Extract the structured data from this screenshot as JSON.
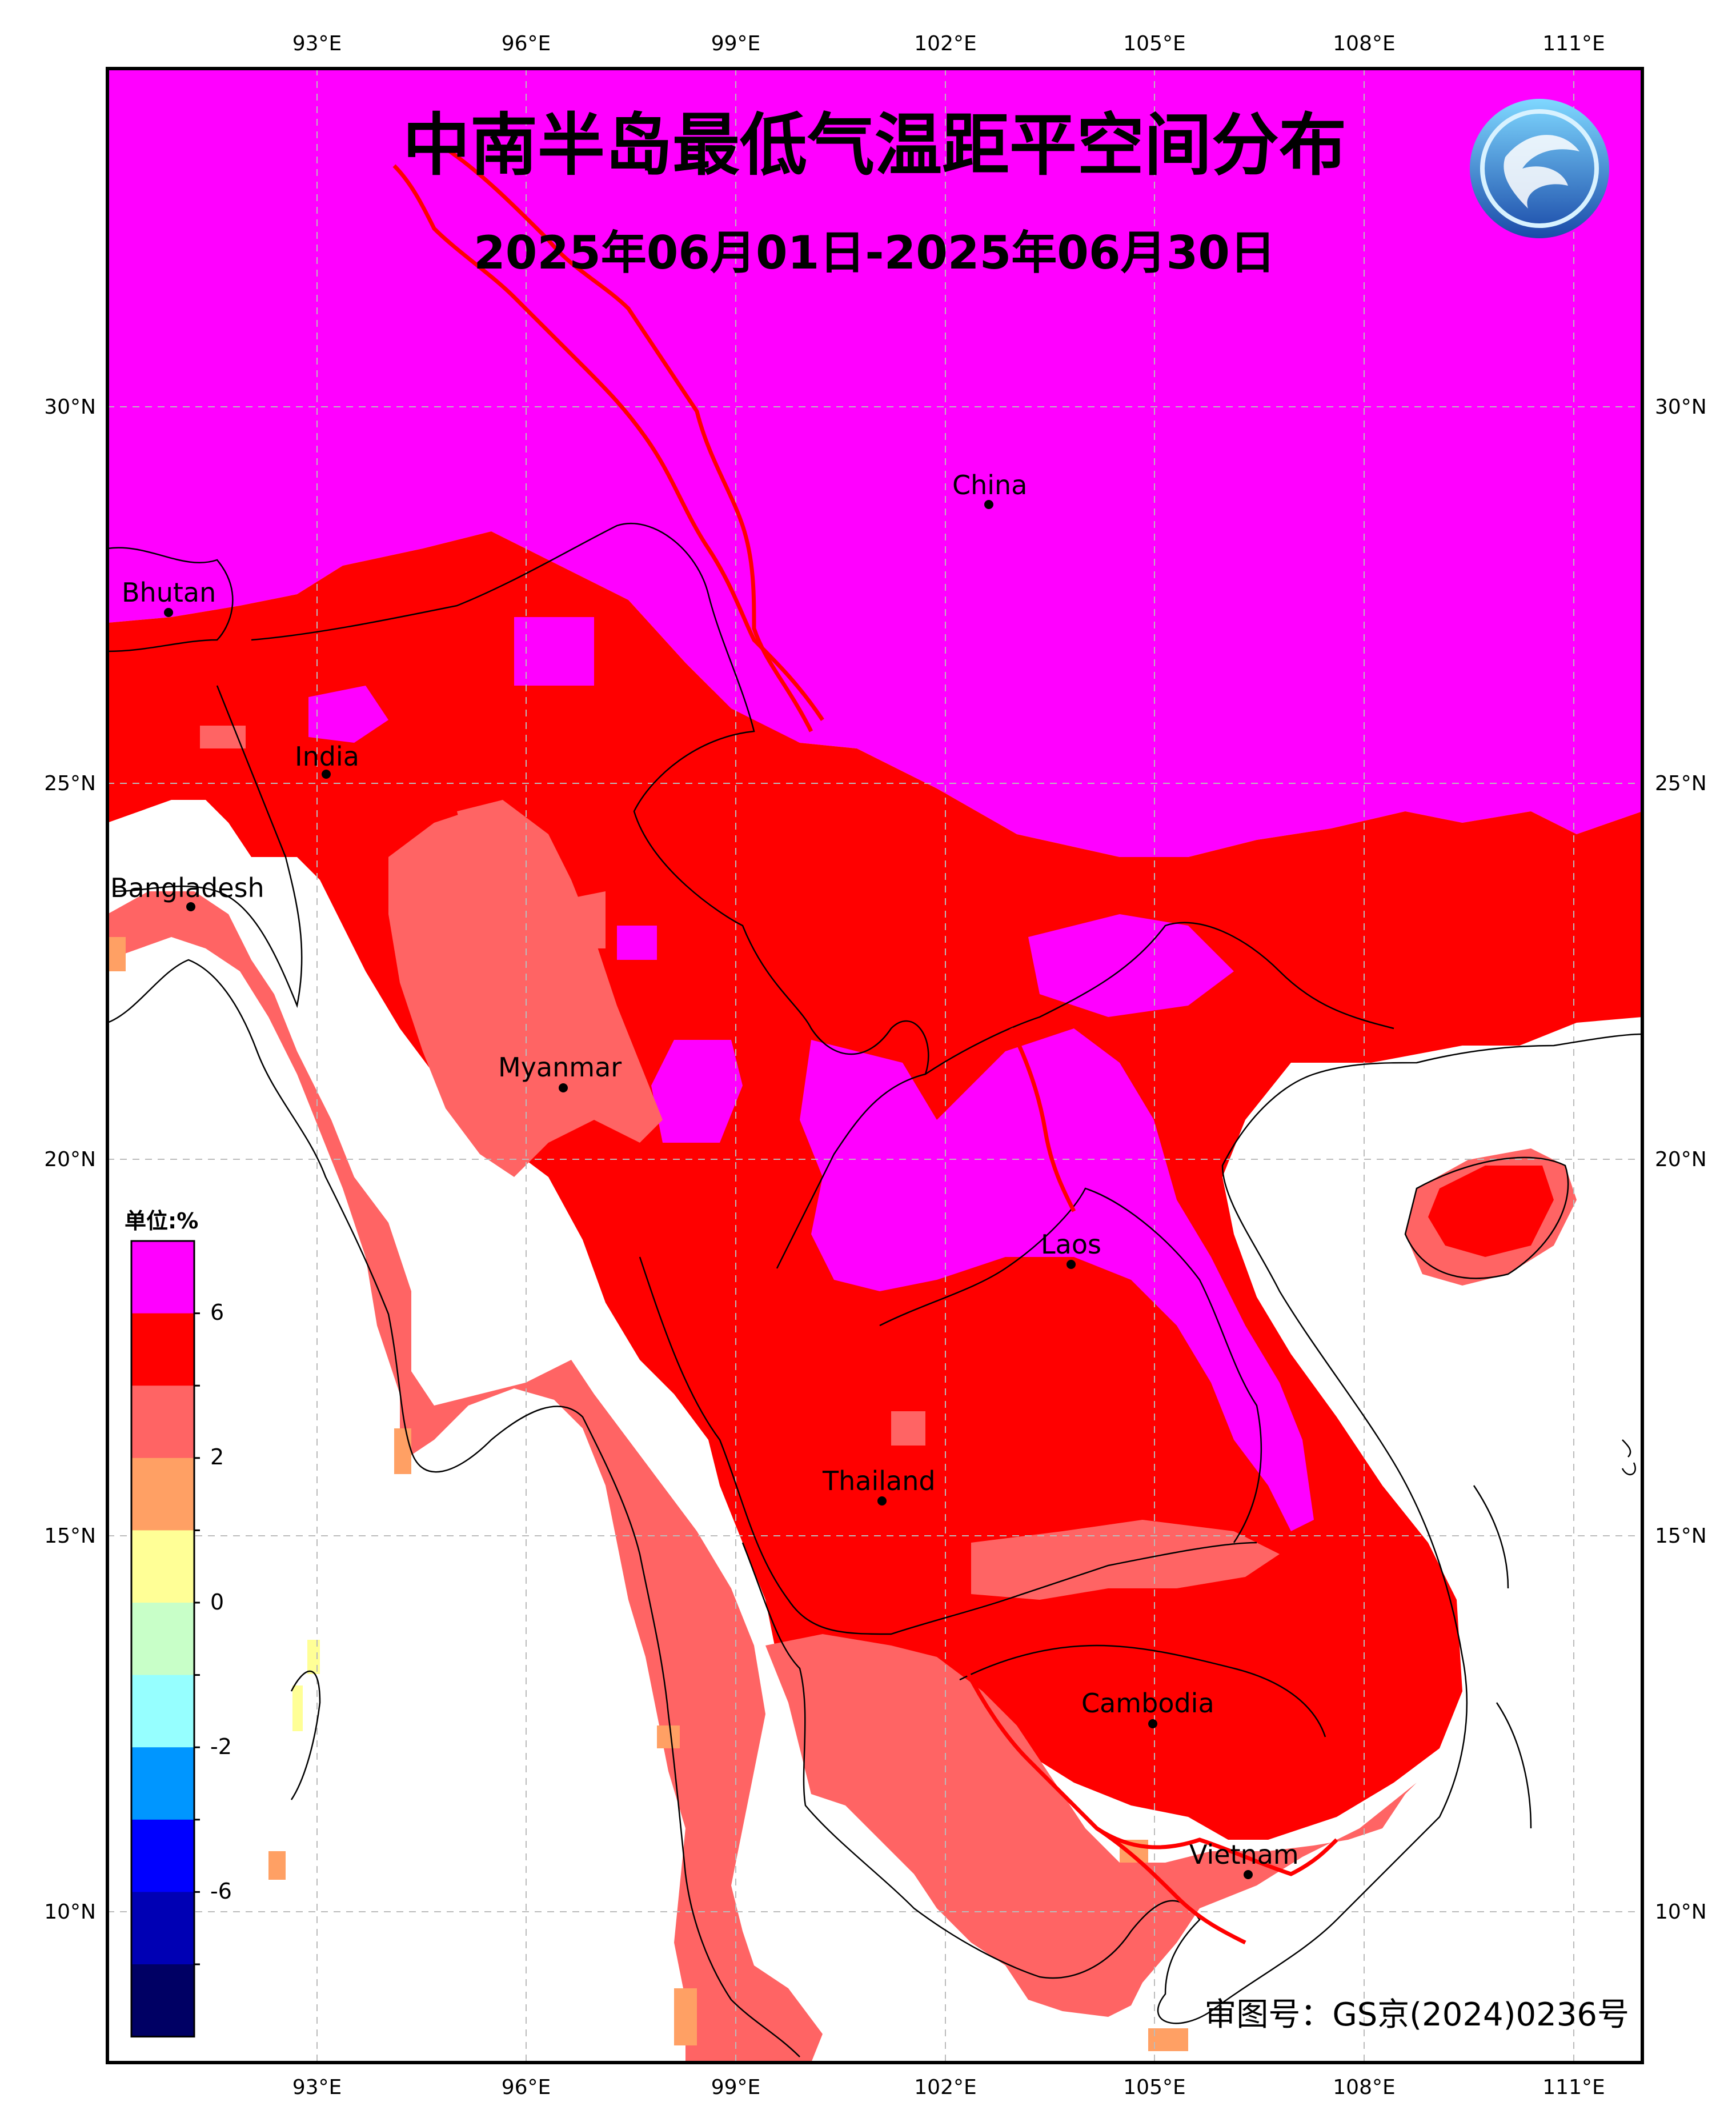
{
  "title": "中南半岛最低气温距平空间分布",
  "subtitle": "2025年06月01日-2025年06月30日",
  "approval_number": "审图号：GS京(2024)0236号",
  "legend": {
    "unit_label": "单位:%",
    "tick_labels": [
      "6",
      "2",
      "0",
      "-2",
      "-6"
    ],
    "colors": [
      "#ff00ff",
      "#ff0000",
      "#ff6464",
      "#ffa064",
      "#ffff96",
      "#c8ffc8",
      "#96ffff",
      "#0096ff",
      "#0000ff",
      "#0000b4",
      "#000064"
    ]
  },
  "axes": {
    "lon_labels": [
      "93°E",
      "96°E",
      "99°E",
      "102°E",
      "105°E",
      "108°E",
      "111°E"
    ],
    "lat_labels": [
      "30°N",
      "25°N",
      "20°N",
      "15°N",
      "10°N"
    ]
  },
  "places": [
    {
      "name": "China"
    },
    {
      "name": "Bhutan"
    },
    {
      "name": "India"
    },
    {
      "name": "Bangladesh"
    },
    {
      "name": "Myanmar"
    },
    {
      "name": "Laos"
    },
    {
      "name": "Thailand"
    },
    {
      "name": "Cambodia"
    },
    {
      "name": "Vietnam"
    }
  ]
}
